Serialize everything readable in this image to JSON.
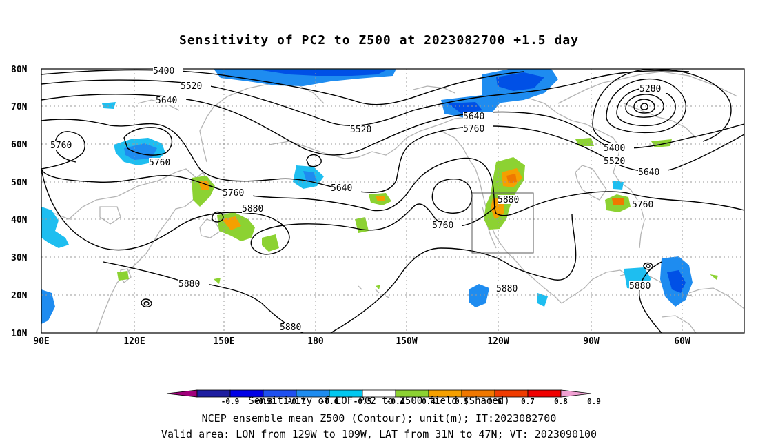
{
  "title": "Sensitivity of PC2 to Z500 at 2023082700 +1.5 day",
  "map": {
    "lat_labels": [
      "80N",
      "70N",
      "60N",
      "50N",
      "40N",
      "30N",
      "20N",
      "10N"
    ],
    "lon_labels": [
      "90E",
      "120E",
      "150E",
      "180",
      "150W",
      "120W",
      "90W",
      "60W"
    ],
    "contour_labels": [
      "5400",
      "5520",
      "5640",
      "5760",
      "5760",
      "5760",
      "5880",
      "5520",
      "5640",
      "5760",
      "5640",
      "5760",
      "5880",
      "5760",
      "5280",
      "5400",
      "5520",
      "5640",
      "5760",
      "5880",
      "5880",
      "5880",
      "5880"
    ],
    "valid_box": {
      "lon_from": "129W",
      "lon_to": "109W",
      "lat_from": "31N",
      "lat_to": "47N"
    }
  },
  "colorbar": {
    "tick_labels": [
      "-0.9",
      "-0.8",
      "-0.7",
      "-0.6",
      "-0.5",
      "-0.4",
      "0.4",
      "0.5",
      "0.6",
      "0.7",
      "0.8",
      "0.9"
    ],
    "colors": [
      "#a0007a",
      "#1e1ea0",
      "#0000e6",
      "#1e50f0",
      "#1e8cf0",
      "#00c8f0",
      "#ffffff",
      "#8cd232",
      "#f5a000",
      "#f07800",
      "#f03c00",
      "#f00000",
      "#f0a0d2"
    ],
    "title": "Sensitivity of EOF PC2 to Z500 field (Shaded)"
  },
  "footer": {
    "line1": "NCEP ensemble mean Z500 (Contour); unit(m); IT:2023082700",
    "line2": "Valid area: LON from 129W to 109W, LAT from 31N to 47N; VT: 2023090100"
  }
}
